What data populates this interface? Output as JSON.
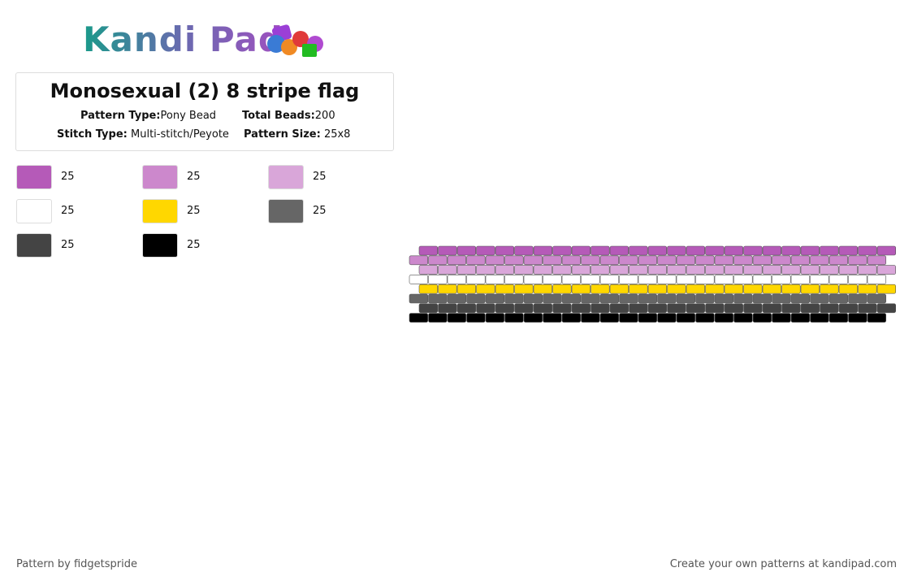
{
  "logo": {
    "text": "Kandi Pad"
  },
  "header": {
    "title": "Monosexual (2) 8 stripe flag",
    "details": [
      {
        "label": "Pattern Type:",
        "value": "Pony Bead"
      },
      {
        "label": "Total Beads:",
        "value": "200"
      },
      {
        "label": "Stitch Type:",
        "value": "Multi-stitch/Peyote"
      },
      {
        "label": "Pattern Size:",
        "value": "25x8"
      }
    ]
  },
  "palette": [
    {
      "color": "#b55ab8",
      "count": "25"
    },
    {
      "color": "#cc88cc",
      "count": "25"
    },
    {
      "color": "#d9a6d9",
      "count": "25"
    },
    {
      "color": "#ffffff",
      "count": "25"
    },
    {
      "color": "#ffd700",
      "count": "25"
    },
    {
      "color": "#666666",
      "count": "25"
    },
    {
      "color": "#444444",
      "count": "25"
    },
    {
      "color": "#000000",
      "count": "25"
    }
  ],
  "pattern": {
    "columns": 25,
    "rows": [
      "#b55ab8",
      "#cc88cc",
      "#d9a6d9",
      "#ffffff",
      "#ffd700",
      "#666666",
      "#444444",
      "#000000"
    ]
  },
  "footer": {
    "left": "Pattern by fidgetspride",
    "right": "Create your own patterns at kandipad.com"
  }
}
